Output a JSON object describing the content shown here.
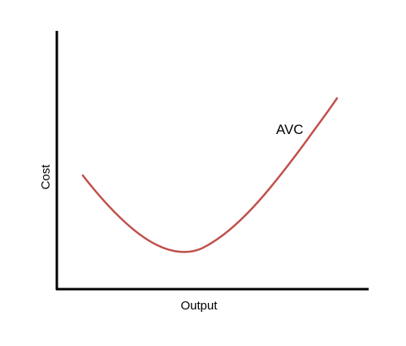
{
  "chart_data": {
    "type": "line",
    "title": "",
    "xlabel": "Output",
    "ylabel": "Cost",
    "grid": false,
    "series": [
      {
        "name": "AVC",
        "color": "#c0504d",
        "points": [
          [
            0.08,
            0.44
          ],
          [
            0.15,
            0.3
          ],
          [
            0.22,
            0.18
          ],
          [
            0.29,
            0.12
          ],
          [
            0.35,
            0.14
          ],
          [
            0.47,
            0.26
          ],
          [
            0.6,
            0.44
          ],
          [
            0.72,
            0.64
          ],
          [
            0.89,
            0.75
          ]
        ]
      }
    ]
  }
}
